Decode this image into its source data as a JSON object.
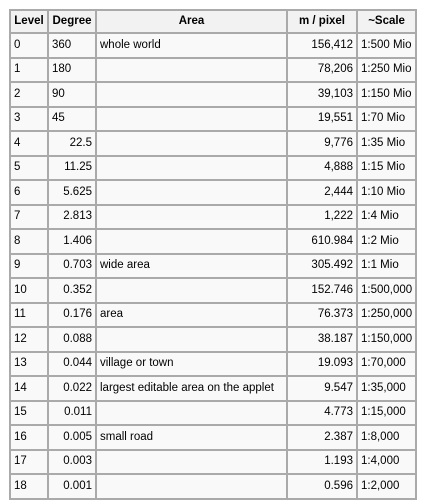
{
  "headers": {
    "level": "Level",
    "degree": "Degree",
    "area": "Area",
    "m_per_pixel": "m / pixel",
    "scale": "~Scale"
  },
  "rows": [
    {
      "level": "0",
      "degree": "360",
      "area": "whole world",
      "m_per_pixel": "156,412",
      "scale": "1:500 Mio"
    },
    {
      "level": "1",
      "degree": "180",
      "area": "",
      "m_per_pixel": "78,206",
      "scale": "1:250 Mio"
    },
    {
      "level": "2",
      "degree": "90",
      "area": "",
      "m_per_pixel": "39,103",
      "scale": "1:150 Mio"
    },
    {
      "level": "3",
      "degree": "45",
      "area": "",
      "m_per_pixel": "19,551",
      "scale": "1:70 Mio"
    },
    {
      "level": "4",
      "degree": "22.5",
      "area": "",
      "m_per_pixel": "9,776",
      "scale": "1:35 Mio"
    },
    {
      "level": "5",
      "degree": "11.25",
      "area": "",
      "m_per_pixel": "4,888",
      "scale": "1:15 Mio"
    },
    {
      "level": "6",
      "degree": "5.625",
      "area": "",
      "m_per_pixel": "2,444",
      "scale": "1:10 Mio"
    },
    {
      "level": "7",
      "degree": "2.813",
      "area": "",
      "m_per_pixel": "1,222",
      "scale": "1:4 Mio"
    },
    {
      "level": "8",
      "degree": "1.406",
      "area": "",
      "m_per_pixel": "610.984",
      "scale": "1:2 Mio"
    },
    {
      "level": "9",
      "degree": "0.703",
      "area": "wide area",
      "m_per_pixel": "305.492",
      "scale": "1:1 Mio"
    },
    {
      "level": "10",
      "degree": "0.352",
      "area": "",
      "m_per_pixel": "152.746",
      "scale": "1:500,000"
    },
    {
      "level": "11",
      "degree": "0.176",
      "area": "area",
      "m_per_pixel": "76.373",
      "scale": "1:250,000"
    },
    {
      "level": "12",
      "degree": "0.088",
      "area": "",
      "m_per_pixel": "38.187",
      "scale": "1:150,000"
    },
    {
      "level": "13",
      "degree": "0.044",
      "area": "village or town",
      "m_per_pixel": "19.093",
      "scale": "1:70,000"
    },
    {
      "level": "14",
      "degree": "0.022",
      "area": "largest editable area on the applet",
      "m_per_pixel": "9.547",
      "scale": "1:35,000"
    },
    {
      "level": "15",
      "degree": "0.011",
      "area": "",
      "m_per_pixel": "4.773",
      "scale": "1:15,000"
    },
    {
      "level": "16",
      "degree": "0.005",
      "area": "small road",
      "m_per_pixel": "2.387",
      "scale": "1:8,000"
    },
    {
      "level": "17",
      "degree": "0.003",
      "area": "",
      "m_per_pixel": "1.193",
      "scale": "1:4,000"
    },
    {
      "level": "18",
      "degree": "0.001",
      "area": "",
      "m_per_pixel": "0.596",
      "scale": "1:2,000"
    }
  ]
}
